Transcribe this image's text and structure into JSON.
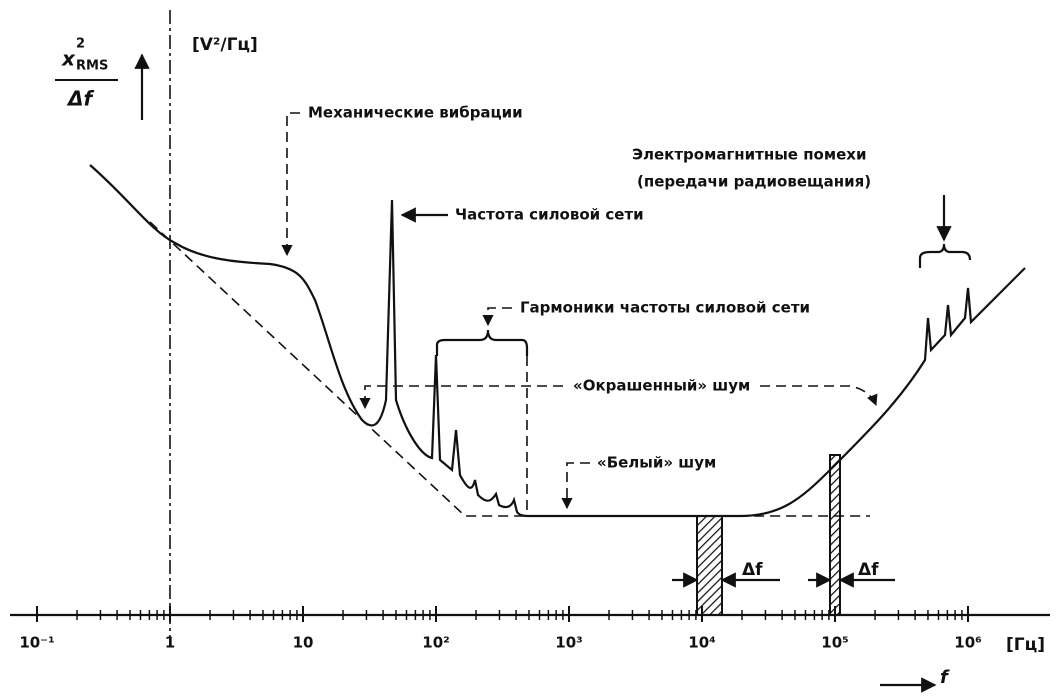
{
  "y_axis": {
    "symbol": "x",
    "power": "2",
    "subscript": "RMS",
    "denominator": "Δf",
    "unit": "[V²/Гц]"
  },
  "x_axis": {
    "tick_labels": [
      "10⁻¹",
      "1",
      "10",
      "10²",
      "10³",
      "10⁴",
      "10⁵",
      "10⁶"
    ],
    "unit": "[Гц]",
    "symbol": "f"
  },
  "annotations": {
    "mechanical": "Механические вибрации",
    "mains": "Частота силовой сети",
    "harmonics": "Гармоники частоты силовой сети",
    "em_line1": "Электромагнитные помехи",
    "em_line2": "(передачи радиовещания)",
    "colored": "«Окрашенный» шум",
    "white": "«Белый» шум",
    "df1": "Δf",
    "df2": "Δf"
  }
}
